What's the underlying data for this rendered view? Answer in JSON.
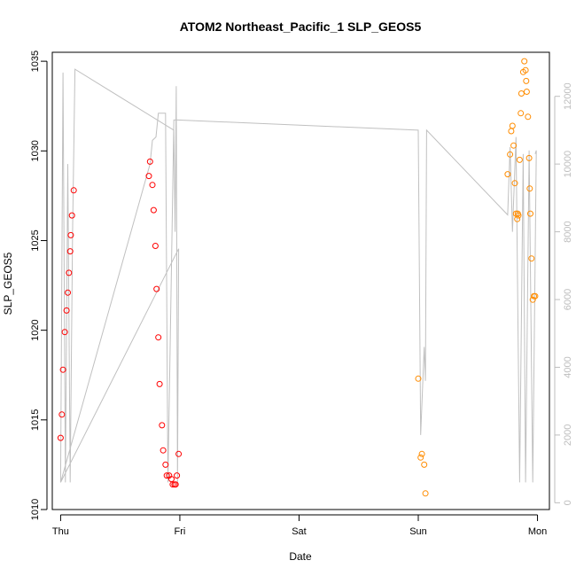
{
  "chart_data": {
    "type": "scatter",
    "title": "ATOM2 Northeast_Pacific_1 SLP_GEOS5",
    "xlabel": "Date",
    "ylabel": "SLP_GEOS5",
    "x_ticks": [
      "Thu",
      "Fri",
      "Sat",
      "Sun",
      "Mon"
    ],
    "xlim": [
      -0.07,
      4.1
    ],
    "ylim": [
      1010,
      1035.5
    ],
    "y_ticks": [
      1010,
      1015,
      1020,
      1025,
      1030,
      1035
    ],
    "y2lim": [
      -200,
      13300
    ],
    "y2_ticks": [
      0,
      2000,
      4000,
      6000,
      8000,
      10000,
      12000
    ],
    "grid": false,
    "colors": {
      "track1": "#ff0000",
      "track2": "#ff8c00",
      "line": "#c0c0c0",
      "right_axis": "#bdbdbd"
    },
    "series": [
      {
        "points": [
          [
            0.0,
            1014.0
          ],
          [
            0.01,
            1015.3
          ],
          [
            0.02,
            1017.8
          ],
          [
            0.035,
            1019.9
          ],
          [
            0.05,
            1021.1
          ],
          [
            0.06,
            1022.1
          ],
          [
            0.07,
            1023.2
          ],
          [
            0.08,
            1024.4
          ],
          [
            0.085,
            1025.3
          ],
          [
            0.095,
            1026.4
          ],
          [
            0.11,
            1027.8
          ],
          [
            0.74,
            1028.6
          ],
          [
            0.75,
            1029.4
          ],
          [
            0.77,
            1028.1
          ],
          [
            0.78,
            1026.7
          ],
          [
            0.795,
            1024.7
          ],
          [
            0.805,
            1022.3
          ],
          [
            0.82,
            1019.6
          ],
          [
            0.83,
            1017.0
          ],
          [
            0.85,
            1014.7
          ],
          [
            0.86,
            1013.3
          ],
          [
            0.88,
            1012.5
          ],
          [
            0.89,
            1011.9
          ],
          [
            0.91,
            1011.9
          ],
          [
            0.93,
            1011.7
          ],
          [
            0.94,
            1011.4
          ],
          [
            0.955,
            1011.4
          ],
          [
            0.965,
            1011.4
          ],
          [
            0.975,
            1011.9
          ],
          [
            0.99,
            1013.1
          ]
        ]
      },
      {
        "points": [
          [
            3.0,
            1017.3
          ],
          [
            3.02,
            1012.9
          ],
          [
            3.03,
            1013.1
          ],
          [
            3.05,
            1012.5
          ],
          [
            3.06,
            1010.9
          ],
          [
            3.75,
            1028.7
          ],
          [
            3.77,
            1029.8
          ],
          [
            3.78,
            1031.1
          ],
          [
            3.79,
            1031.4
          ],
          [
            3.8,
            1030.3
          ],
          [
            3.81,
            1028.2
          ],
          [
            3.82,
            1026.5
          ],
          [
            3.83,
            1026.2
          ],
          [
            3.835,
            1026.5
          ],
          [
            3.84,
            1026.4
          ],
          [
            3.85,
            1029.5
          ],
          [
            3.86,
            1032.1
          ],
          [
            3.865,
            1033.2
          ],
          [
            3.88,
            1034.4
          ],
          [
            3.89,
            1035.0
          ],
          [
            3.9,
            1034.5
          ],
          [
            3.905,
            1033.9
          ],
          [
            3.91,
            1033.3
          ],
          [
            3.92,
            1031.9
          ],
          [
            3.93,
            1029.6
          ],
          [
            3.935,
            1027.9
          ],
          [
            3.94,
            1026.5
          ],
          [
            3.95,
            1024.0
          ],
          [
            3.96,
            1021.7
          ],
          [
            3.97,
            1021.9
          ],
          [
            3.98,
            1021.9
          ]
        ]
      }
    ],
    "secondary_line": [
      [
        0.0,
        600
      ],
      [
        0.02,
        12700
      ],
      [
        0.04,
        600
      ],
      [
        0.06,
        10000
      ],
      [
        0.08,
        600
      ],
      [
        0.1,
        8000
      ],
      [
        0.12,
        12800
      ],
      [
        0.95,
        11000
      ],
      [
        0.96,
        8000
      ],
      [
        0.97,
        12300
      ],
      [
        0.98,
        600
      ],
      [
        0.99,
        7500
      ],
      [
        0.0,
        600
      ],
      [
        0.75,
        10000
      ],
      [
        0.77,
        10700
      ],
      [
        0.8,
        10800
      ],
      [
        0.82,
        11500
      ],
      [
        0.88,
        11500
      ],
      [
        0.9,
        600
      ],
      [
        0.95,
        11300
      ],
      [
        0.98,
        11300
      ],
      [
        3.0,
        11000
      ],
      [
        3.02,
        2000
      ],
      [
        3.05,
        4600
      ],
      [
        3.06,
        3600
      ],
      [
        3.07,
        11000
      ],
      [
        3.75,
        8500
      ],
      [
        3.77,
        10500
      ],
      [
        3.79,
        8000
      ],
      [
        3.82,
        10800
      ],
      [
        3.85,
        600
      ],
      [
        3.88,
        10300
      ],
      [
        3.9,
        600
      ],
      [
        3.93,
        10400
      ],
      [
        3.96,
        600
      ],
      [
        3.99,
        10400
      ],
      [
        3.98,
        10300
      ]
    ]
  }
}
